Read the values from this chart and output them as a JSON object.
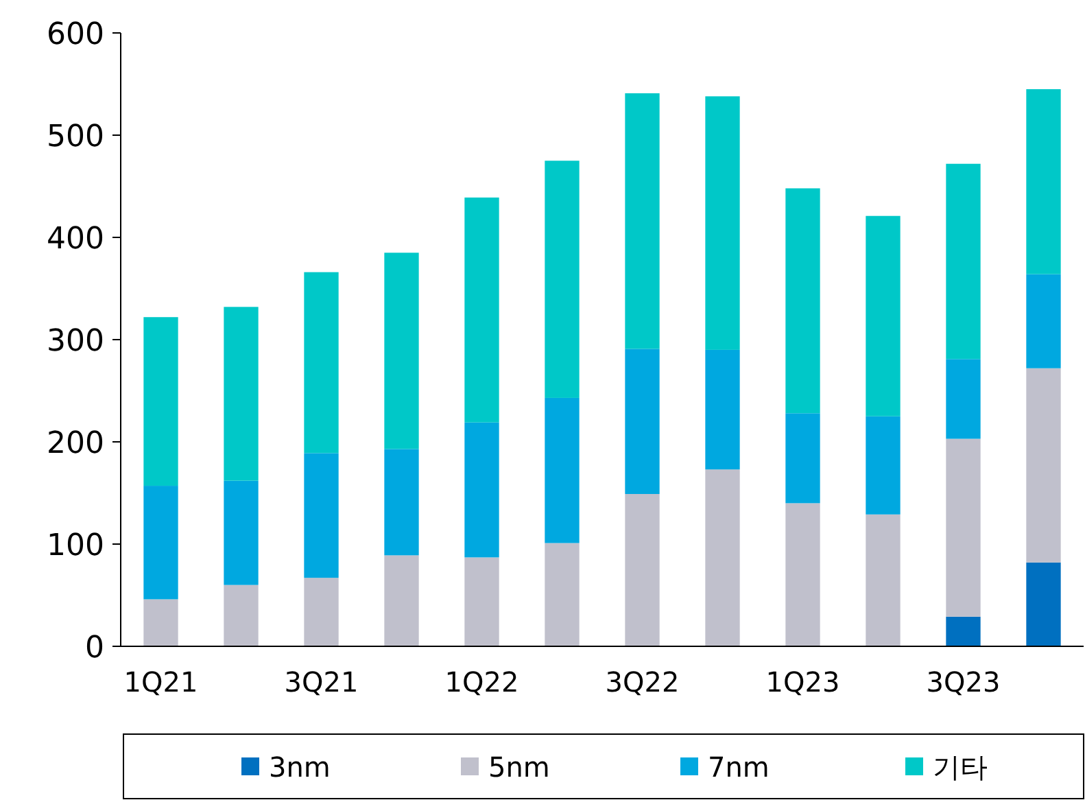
{
  "chart_data": {
    "type": "bar",
    "stacked": true,
    "categories": [
      "1Q21",
      null,
      "3Q21",
      null,
      "1Q22",
      null,
      "3Q22",
      null,
      "1Q23",
      null,
      "3Q23",
      null
    ],
    "series": [
      {
        "name": "3nm",
        "color": "#0070c0",
        "values": [
          0,
          0,
          0,
          0,
          0,
          0,
          0,
          0,
          0,
          0,
          29,
          82
        ]
      },
      {
        "name": "5nm",
        "color": "#c0c0cc",
        "values": [
          46,
          60,
          67,
          89,
          87,
          101,
          149,
          173,
          140,
          129,
          174,
          190
        ]
      },
      {
        "name": "7nm",
        "color": "#00a8e0",
        "values": [
          111,
          102,
          122,
          104,
          132,
          142,
          142,
          117,
          88,
          96,
          78,
          92
        ]
      },
      {
        "name": "기타",
        "color": "#00c8c8",
        "values": [
          165,
          170,
          177,
          192,
          220,
          232,
          250,
          248,
          220,
          196,
          191,
          181
        ]
      }
    ],
    "ylim": [
      0,
      600
    ],
    "yticks": [
      0,
      100,
      200,
      300,
      400,
      500,
      600
    ],
    "grid": false,
    "legend": "bottom"
  }
}
